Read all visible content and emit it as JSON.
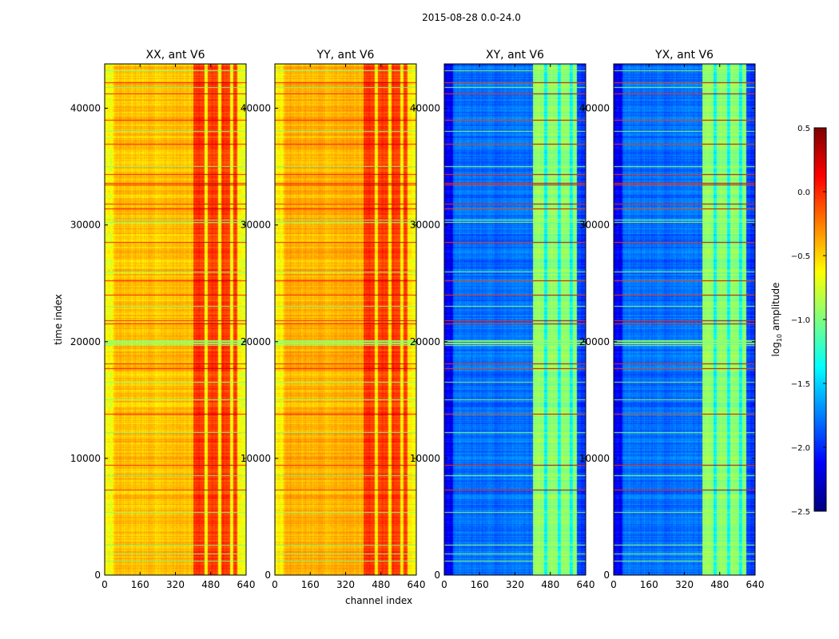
{
  "chart_data": {
    "type": "heatmap",
    "title": "2015-08-28 0.0-24.0",
    "xlabel": "channel index",
    "ylabel": "time index",
    "xlim": [
      0,
      640
    ],
    "ylim": [
      0,
      43800
    ],
    "xticks": [
      0,
      160,
      320,
      480,
      640
    ],
    "yticks": [
      0,
      10000,
      20000,
      30000,
      40000
    ],
    "colormap": "jet",
    "colorbar": {
      "label_main": "log",
      "label_sub": "10",
      "label_rest": " amplitude",
      "range": [
        -2.5,
        0.5
      ],
      "ticks": [
        "0.5",
        "0.0",
        "−0.5",
        "−1.0",
        "−1.5",
        "−2.0",
        "−2.5"
      ],
      "tick_values": [
        0.5,
        0.0,
        -0.5,
        -1.0,
        -1.5,
        -2.0,
        -2.5
      ]
    },
    "panels": [
      {
        "title": "XX, ant V6",
        "base_level": -0.45,
        "band_level": -0.05,
        "band_channels": [
          400,
          600
        ],
        "gap_level": -0.6
      },
      {
        "title": "YY, ant V6",
        "base_level": -0.4,
        "band_level": -0.05,
        "band_channels": [
          400,
          600
        ],
        "gap_level": -0.55
      },
      {
        "title": "XY, ant V6",
        "base_level": -1.8,
        "band_level": -0.95,
        "band_channels": [
          400,
          600
        ],
        "gap_level": -1.35
      },
      {
        "title": "YX, ant V6",
        "base_level": -1.8,
        "band_level": -0.95,
        "band_channels": [
          400,
          600
        ],
        "gap_level": -1.35
      }
    ],
    "gap_channels": [
      460,
      520,
      575
    ],
    "rfi_rows_high": [
      7300,
      9400,
      13800,
      17700,
      18100,
      21500,
      21800,
      24000,
      25200,
      28500,
      31400,
      31800,
      33400,
      33600,
      34300,
      36900,
      39000,
      41200,
      42200
    ],
    "rfi_rows_green": [
      1200,
      1800,
      2600,
      5400,
      8500,
      12200,
      15000,
      16500,
      19700,
      19800,
      19900,
      20000,
      20100,
      23000,
      26000,
      30200,
      30400,
      35000,
      38000,
      41800,
      43200
    ]
  }
}
